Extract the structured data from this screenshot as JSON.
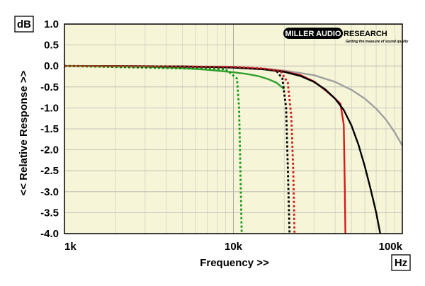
{
  "chart_data": {
    "type": "line",
    "title": "",
    "xlabel": "Frequency >>",
    "ylabel": "<< Relative Response >>",
    "x_unit": "Hz",
    "y_unit": "dB",
    "xscale": "log",
    "xlim": [
      1000,
      100000
    ],
    "ylim": [
      -4.0,
      1.0
    ],
    "grid": true,
    "x_ticks": [
      {
        "value": 1000,
        "label": "1k"
      },
      {
        "value": 10000,
        "label": "10k"
      },
      {
        "value": 100000,
        "label": "100k"
      }
    ],
    "y_ticks": [
      {
        "value": 1.0,
        "label": "1.0"
      },
      {
        "value": 0.5,
        "label": "0.5"
      },
      {
        "value": 0.0,
        "label": "0.0"
      },
      {
        "value": -0.5,
        "label": "-0.5"
      },
      {
        "value": -1.0,
        "label": "-1.0"
      },
      {
        "value": -1.5,
        "label": "-1.5"
      },
      {
        "value": -2.0,
        "label": "-2.0"
      },
      {
        "value": -2.5,
        "label": "-2.5"
      },
      {
        "value": -3.0,
        "label": "-3.0"
      },
      {
        "value": -3.5,
        "label": "-3.5"
      },
      {
        "value": -4.0,
        "label": "-4.0"
      }
    ],
    "series": [
      {
        "color": "#a0a0a0",
        "style": "solid",
        "x": [
          1000,
          5000,
          10000,
          15000,
          20000,
          30000,
          40000,
          50000,
          60000,
          70000,
          80000,
          90000,
          100000
        ],
        "y": [
          0.0,
          -0.01,
          -0.03,
          -0.06,
          -0.11,
          -0.22,
          -0.38,
          -0.57,
          -0.78,
          -1.02,
          -1.28,
          -1.58,
          -1.9
        ]
      },
      {
        "color": "#d41c1c",
        "style": "solid",
        "x": [
          1000,
          5000,
          10000,
          15000,
          20000,
          25000,
          30000,
          35000,
          40000,
          43000,
          45000,
          45600,
          46000
        ],
        "y": [
          0.0,
          -0.01,
          -0.03,
          -0.07,
          -0.13,
          -0.22,
          -0.37,
          -0.58,
          -0.78,
          -0.9,
          -1.4,
          -2.8,
          -4.0
        ]
      },
      {
        "color": "#000000",
        "style": "solid",
        "x": [
          1000,
          5000,
          10000,
          15000,
          20000,
          25000,
          30000,
          35000,
          40000,
          45000,
          50000,
          55000,
          60000,
          65000,
          70000,
          74000
        ],
        "y": [
          0.0,
          -0.01,
          -0.04,
          -0.08,
          -0.14,
          -0.24,
          -0.38,
          -0.56,
          -0.78,
          -1.05,
          -1.42,
          -1.88,
          -2.4,
          -2.95,
          -3.5,
          -4.0
        ]
      },
      {
        "color": "#30a030",
        "style": "solid",
        "x": [
          1000,
          3000,
          5000,
          7000,
          10000,
          12000,
          14000,
          16000,
          18000,
          20000
        ],
        "y": [
          0.0,
          -0.02,
          -0.05,
          -0.09,
          -0.15,
          -0.19,
          -0.24,
          -0.31,
          -0.4,
          -0.55
        ]
      },
      {
        "color": "#1a9a1a",
        "style": "dotted",
        "x": [
          1000,
          9000,
          10500,
          10800,
          11000,
          11200
        ],
        "y": [
          0.0,
          -0.08,
          -0.3,
          -1.0,
          -2.5,
          -4.0
        ]
      },
      {
        "color": "#000000",
        "style": "dotted",
        "x": [
          1000,
          10000,
          15000,
          18000,
          19500,
          20500,
          21000,
          21500
        ],
        "y": [
          0.0,
          -0.03,
          -0.07,
          -0.12,
          -0.3,
          -1.0,
          -2.4,
          -4.0
        ]
      },
      {
        "color": "#d41c1c",
        "style": "dotted",
        "x": [
          1000,
          10000,
          15000,
          19000,
          21000,
          22000,
          22600,
          23000
        ],
        "y": [
          0.0,
          -0.02,
          -0.06,
          -0.12,
          -0.4,
          -1.2,
          -2.5,
          -4.0
        ]
      }
    ]
  },
  "logo": {
    "part1": "MILLER AUDIO",
    "part2": "RESEARCH",
    "tagline": "Getting the measure of sound quality"
  }
}
